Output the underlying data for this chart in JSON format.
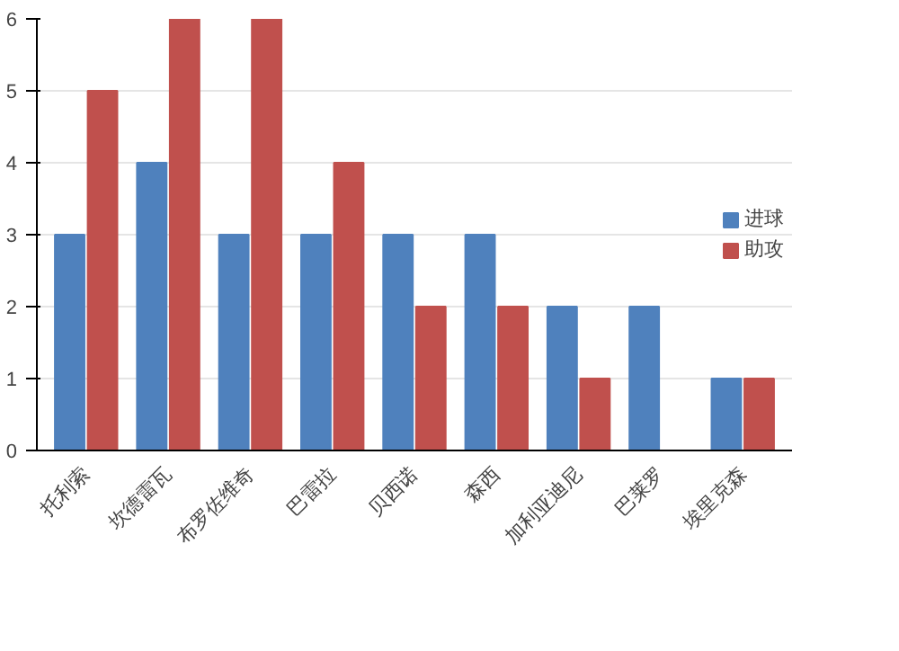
{
  "chart_data": {
    "type": "bar",
    "categories": [
      "托利索",
      "坎德雷瓦",
      "布罗佐维奇",
      "巴雷拉",
      "贝西诺",
      "森西",
      "加利亚迪尼",
      "巴莱罗",
      "埃里克森"
    ],
    "series": [
      {
        "name": "进球",
        "color": "#4f81bd",
        "values": [
          3,
          4,
          3,
          3,
          3,
          3,
          2,
          2,
          1
        ]
      },
      {
        "name": "助攻",
        "color": "#c0504d",
        "values": [
          5,
          6,
          6,
          4,
          2,
          2,
          1,
          0,
          1
        ]
      }
    ],
    "ylim": [
      0,
      6
    ],
    "yticks": [
      0,
      1,
      2,
      3,
      4,
      5,
      6
    ],
    "grid": "y",
    "legend": "right"
  }
}
